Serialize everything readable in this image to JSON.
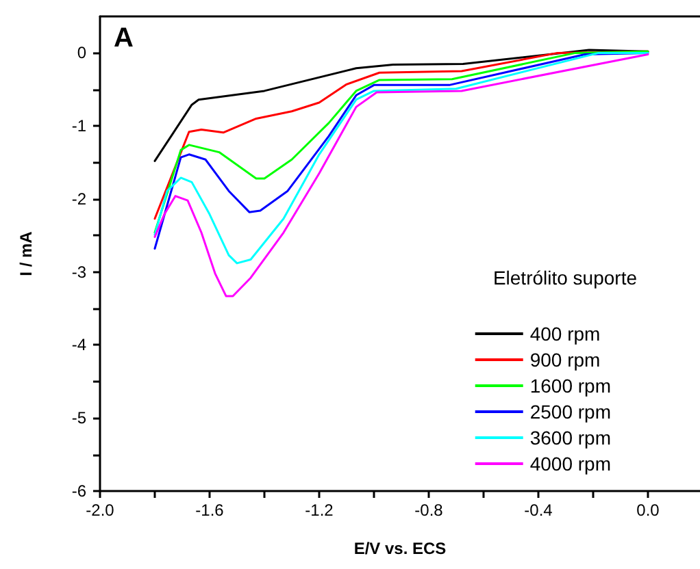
{
  "chart_data": {
    "type": "line",
    "xlabel": "E/V vs. ECS",
    "ylabel": "I / mA",
    "legend_title": "Eletrólito suporte",
    "legend": "right",
    "annotations": [
      "A"
    ],
    "grid": false,
    "marker": "none",
    "line_style": "solid",
    "xlim": [
      -2.0,
      0.19
    ],
    "ylim": [
      -6,
      0.5
    ],
    "xticks": [
      {
        "value": -2,
        "label": "-2.0"
      },
      {
        "value": -1.8,
        "label": null
      },
      {
        "value": -1.6,
        "label": "-1.6"
      },
      {
        "value": -1.4,
        "label": null
      },
      {
        "value": -1.2,
        "label": "-1.2"
      },
      {
        "value": -1,
        "label": null
      },
      {
        "value": -0.8,
        "label": "-0.8"
      },
      {
        "value": -0.6,
        "label": null
      },
      {
        "value": -0.4,
        "label": "-0.4"
      },
      {
        "value": -0.2,
        "label": null
      },
      {
        "value": 0,
        "label": "0.0"
      }
    ],
    "yticks": [
      -6,
      {
        "value": -5.5,
        "label": null
      },
      -5,
      {
        "value": -4.5,
        "label": null
      },
      -4,
      {
        "value": -3.5,
        "label": null
      },
      -3,
      {
        "value": -2.5,
        "label": null
      },
      -2,
      {
        "value": -1.5,
        "label": null
      },
      -1,
      {
        "value": -0.5,
        "label": null
      },
      0
    ],
    "series": [
      {
        "name": "400 rpm",
        "color": "#000000",
        "x": [
          -1.8,
          -1.665,
          -1.64,
          -1.4,
          -1.065,
          -0.93,
          -0.675,
          -0.215,
          0.0
        ],
        "values": [
          -1.48,
          -0.71,
          -0.64,
          -0.52,
          -0.21,
          -0.16,
          -0.15,
          0.04,
          0.02
        ]
      },
      {
        "name": "900 rpm",
        "color": "#ff0000",
        "x": [
          -1.8,
          -1.675,
          -1.63,
          -1.55,
          -1.43,
          -1.3,
          -1.2,
          -1.1,
          -0.98,
          -0.68,
          -0.33,
          0.0
        ],
        "values": [
          -2.27,
          -1.08,
          -1.05,
          -1.09,
          -0.9,
          -0.8,
          -0.68,
          -0.43,
          -0.27,
          -0.25,
          0,
          0.02
        ]
      },
      {
        "name": "1600 rpm",
        "color": "#00ff00",
        "x": [
          -1.8,
          -1.705,
          -1.675,
          -1.565,
          -1.43,
          -1.4,
          -1.3,
          -1.165,
          -1.065,
          -0.98,
          -0.715,
          -0.265,
          0.0
        ],
        "values": [
          -2.46,
          -1.33,
          -1.26,
          -1.36,
          -1.72,
          -1.72,
          -1.46,
          -0.96,
          -0.52,
          -0.37,
          -0.36,
          0,
          0.02
        ]
      },
      {
        "name": "2500 rpm",
        "color": "#0000ff",
        "x": [
          -1.8,
          -1.705,
          -1.675,
          -1.615,
          -1.53,
          -1.455,
          -1.415,
          -1.315,
          -1.165,
          -1.065,
          -1.0,
          -0.725,
          -0.23,
          0.0
        ],
        "values": [
          -2.68,
          -1.43,
          -1.39,
          -1.46,
          -1.89,
          -2.18,
          -2.16,
          -1.89,
          -1.14,
          -0.58,
          -0.44,
          -0.44,
          -0.02,
          0.0
        ]
      },
      {
        "name": "3600 rpm",
        "color": "#00ffff",
        "x": [
          -1.8,
          -1.755,
          -1.705,
          -1.665,
          -1.6,
          -1.53,
          -1.5,
          -1.45,
          -1.33,
          -1.2,
          -1.065,
          -1.0,
          -0.7,
          -0.18,
          0.0
        ],
        "values": [
          -2.49,
          -1.89,
          -1.71,
          -1.77,
          -2.21,
          -2.77,
          -2.88,
          -2.83,
          -2.27,
          -1.39,
          -0.64,
          -0.52,
          -0.49,
          0,
          0.0
        ]
      },
      {
        "name": "4000 rpm",
        "color": "#ff00ff",
        "x": [
          -1.8,
          -1.765,
          -1.725,
          -1.68,
          -1.63,
          -1.58,
          -1.54,
          -1.515,
          -1.45,
          -1.33,
          -1.2,
          -1.065,
          -0.99,
          -0.68,
          0.0
        ],
        "values": [
          -2.52,
          -2.21,
          -1.96,
          -2.02,
          -2.46,
          -3.02,
          -3.33,
          -3.33,
          -3.08,
          -2.46,
          -1.65,
          -0.74,
          -0.54,
          -0.52,
          -0.02
        ]
      }
    ]
  }
}
